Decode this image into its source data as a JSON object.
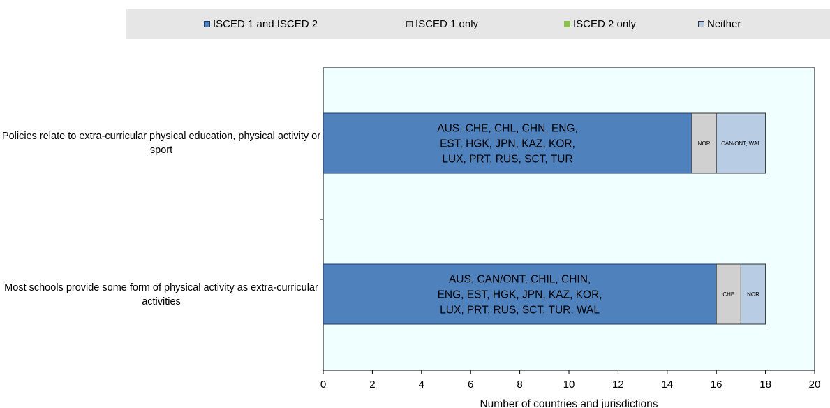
{
  "chart_data": {
    "type": "bar",
    "orientation": "horizontal",
    "stacked": true,
    "categories": [
      "Policies relate to extra-curricular physical education, physical activity or sport",
      "Most schools provide some form of physical activity as extra-curricular activities"
    ],
    "series": [
      {
        "name": "ISCED 1 and ISCED 2",
        "color": "#4f81bd",
        "values": [
          15,
          16
        ],
        "labels": [
          [
            "AUS, CHE, CHL, CHN, ENG,",
            "EST, HGK, JPN, KAZ, KOR,",
            "LUX, PRT, RUS, SCT, TUR"
          ],
          [
            "AUS, CAN/ONT, CHIL, CHIN,",
            "ENG, EST, HGK, JPN, KAZ, KOR,",
            "LUX, PRT, RUS, SCT, TUR, WAL"
          ]
        ]
      },
      {
        "name": "ISCED 1 only",
        "color": "#d0d0d0",
        "values": [
          1,
          1
        ],
        "labels": [
          [
            "NOR"
          ],
          [
            "CHE"
          ]
        ]
      },
      {
        "name": "ISCED 2 only",
        "color": "#8cc152",
        "values": [
          0,
          0
        ],
        "labels": [
          [],
          []
        ]
      },
      {
        "name": "Neither",
        "color": "#b8cce4",
        "values": [
          2,
          1
        ],
        "labels": [
          [
            "CAN/ONT, WAL"
          ],
          [
            "NOR"
          ]
        ]
      }
    ],
    "xlabel": "Number of countries and jurisdictions",
    "xlim": [
      0,
      20
    ],
    "xticks": [
      0,
      2,
      4,
      6,
      8,
      10,
      12,
      14,
      16,
      18,
      20
    ],
    "legend_position": "top",
    "grid": false,
    "plot_background": "#f0ffff"
  }
}
